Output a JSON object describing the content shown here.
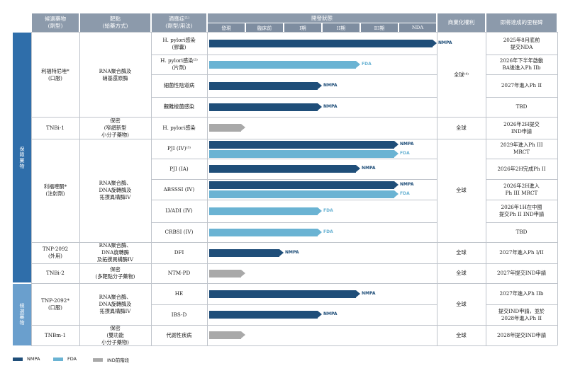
{
  "colors": {
    "nmpa": "#1f4e79",
    "fda": "#6ab3d3",
    "ind": "#a9a9a9",
    "band1": "#2f6eaa",
    "band2": "#6a9fcd"
  },
  "headers": {
    "candidate": "候選藥物\n(劑型)",
    "target": "靶點\n(給藥方式)",
    "indication": "適應症⁽¹⁾\n(劑型/用法)",
    "dev_status": "開發狀態",
    "commercial": "商業化權利",
    "milestone": "即將達成的里程碑"
  },
  "stages": [
    "發現",
    "臨床前",
    "I期",
    "II期",
    "III期",
    "NDA"
  ],
  "bands": [
    "保障藥物",
    "候選藥物"
  ],
  "candidates": [
    {
      "name": "利福特尼唑*\n(口服)",
      "target": "RNA聚合酶及\n硝基還原酶",
      "rights": "全球⁽⁴⁾"
    },
    {
      "name": "TNBi-1",
      "target": "保密\n(窄譜新型\n小分子藥物)",
      "rights": "全球"
    },
    {
      "name": "利福喹酮*\n(注射劑)",
      "target": "RNA聚合酶、\nDNA旋轉酶及\n拓撲異構酶IV",
      "rights": "全球"
    },
    {
      "name": "TNP-2092\n(外用)",
      "target": "RNA聚合酶、\nDNA旋轉酶\n及拓撲異構酶IV",
      "rights": "全球"
    },
    {
      "name": "TNBi-2",
      "target": "保密\n(多靶點分子藥物)",
      "rights": "全球"
    },
    {
      "name": "TNP-2092*\n(口服)",
      "target": "RNA聚合酶、\nDNA旋轉酶及\n拓撲異構酶IV",
      "rights": "全球"
    },
    {
      "name": "TNBm-1",
      "target": "保密\n(雙功能\n小分子藥物)",
      "rights": "全球"
    }
  ],
  "rows": [
    {
      "indication": "H. pylori感染\n(膠囊)",
      "milestone": "2025年8月底前\n提交NDA",
      "bars": [
        {
          "type": "nmpa",
          "label": "NMPA",
          "stage": "NDA"
        }
      ]
    },
    {
      "indication": "H. pylori感染⁽²⁾\n(片劑)",
      "milestone": "2026年下半年啟動\nBA後進入Ph IIb",
      "bars": [
        {
          "type": "fda",
          "label": "FDA",
          "stage": "II期"
        }
      ]
    },
    {
      "indication": "細菌性陰道病",
      "milestone": "2027年進入Ph II",
      "bars": [
        {
          "type": "nmpa",
          "label": "NMPA",
          "stage": "I期"
        }
      ]
    },
    {
      "indication": "艱難梭菌感染",
      "milestone": "TBD",
      "bars": [
        {
          "type": "nmpa",
          "label": "NMPA",
          "stage": "I期"
        }
      ]
    },
    {
      "indication": "H. pylori感染",
      "milestone": "2026年2H提交\nIND申請",
      "bars": [
        {
          "type": "ind",
          "label": "",
          "stage": "IND前階段"
        }
      ]
    },
    {
      "indication": "PJI (IV)⁽³⁾",
      "milestone": "2029年進入Ph III\nMRCT",
      "bars": [
        {
          "type": "nmpa",
          "label": "NMPA",
          "stage": "III期"
        },
        {
          "type": "fda",
          "label": "FDA",
          "stage": "III期"
        }
      ]
    },
    {
      "indication": "PJI (IA)",
      "milestone": "2026年2H完成Ph II",
      "bars": [
        {
          "type": "nmpa",
          "label": "NMPA",
          "stage": "II期"
        }
      ]
    },
    {
      "indication": "ABSSSI (IV)",
      "milestone": "2026年2H進入\nPh III MRCT",
      "bars": [
        {
          "type": "nmpa",
          "label": "NMPA",
          "stage": "III期"
        },
        {
          "type": "fda",
          "label": "FDA",
          "stage": "III期"
        }
      ]
    },
    {
      "indication": "LVADI (IV)",
      "milestone": "2026年1H在中國\n提交Ph II IND申請",
      "bars": [
        {
          "type": "fda",
          "label": "FDA",
          "stage": "I期"
        }
      ]
    },
    {
      "indication": "CRBSI (IV)",
      "milestone": "TBD",
      "bars": [
        {
          "type": "fda",
          "label": "FDA",
          "stage": "I期"
        }
      ]
    },
    {
      "indication": "DFI",
      "milestone": "2027年進入Ph I/II",
      "bars": [
        {
          "type": "nmpa",
          "label": "NMPA",
          "stage": "臨床前"
        }
      ]
    },
    {
      "indication": "NTM-PD",
      "milestone": "2027年提交IND申請",
      "bars": [
        {
          "type": "ind",
          "label": "",
          "stage": "IND前階段"
        }
      ]
    },
    {
      "indication": "HE",
      "milestone": "2027年進入Ph IIb",
      "bars": [
        {
          "type": "nmpa",
          "label": "NMPA",
          "stage": "II期"
        }
      ]
    },
    {
      "indication": "IBS-D",
      "milestone": "提交IND申請，並於\n2028年進入Ph II",
      "bars": [
        {
          "type": "nmpa",
          "label": "NMPA",
          "stage": "I期"
        }
      ]
    },
    {
      "indication": "代謝性疾病",
      "milestone": "2028年提交IND申請",
      "bars": [
        {
          "type": "ind",
          "label": "",
          "stage": "IND前階段"
        }
      ]
    }
  ],
  "legend": [
    {
      "type": "nmpa",
      "label": "NMPA"
    },
    {
      "type": "fda",
      "label": "FDA"
    },
    {
      "type": "ind",
      "label": "IND前階段"
    }
  ]
}
